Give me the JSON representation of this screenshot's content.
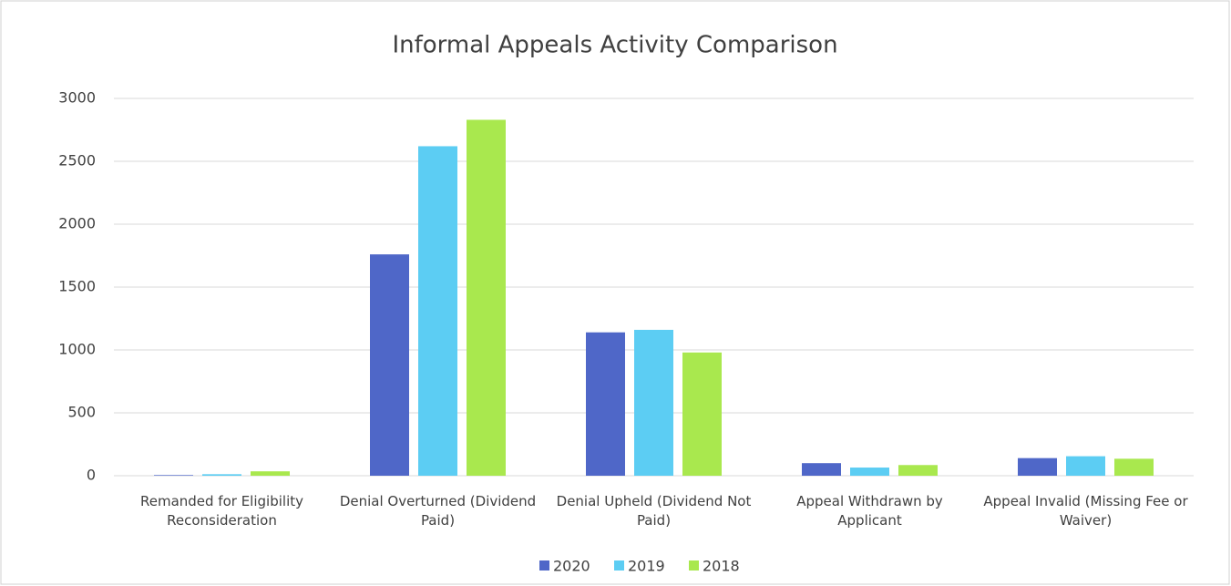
{
  "chart_data": {
    "type": "bar",
    "title": "Informal Appeals Activity Comparison",
    "categories": [
      "Remanded for Eligibility Reconsideration",
      "Denial Overturned (Dividend Paid)",
      "Denial Upheld (Dividend Not Paid)",
      "Appeal Withdrawn by Applicant",
      "Appeal Invalid (Missing Fee or Waiver)"
    ],
    "series": [
      {
        "name": "2020",
        "color": "#4f67c8",
        "values": [
          5,
          1760,
          1140,
          100,
          140
        ]
      },
      {
        "name": "2019",
        "color": "#5ccdf3",
        "values": [
          12,
          2620,
          1160,
          65,
          155
        ]
      },
      {
        "name": "2018",
        "color": "#a9e84e",
        "values": [
          35,
          2830,
          980,
          85,
          135
        ]
      }
    ],
    "ylim": [
      0,
      3000
    ],
    "yticks": [
      0,
      500,
      1000,
      1500,
      2000,
      2500,
      3000
    ],
    "grid": true,
    "legend": "bottom"
  }
}
